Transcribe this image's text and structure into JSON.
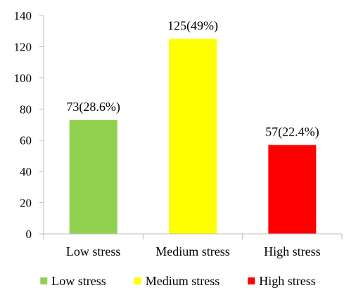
{
  "chart_data": {
    "type": "bar",
    "categories": [
      "Low stress",
      "Medium stress",
      "High stress"
    ],
    "values": [
      73,
      125,
      57
    ],
    "data_labels": [
      "73(28.6%)",
      "125(49%)",
      "57(22.4%)"
    ],
    "colors": [
      "#92d050",
      "#ffff00",
      "#ff0000"
    ],
    "ylim": [
      0,
      140
    ],
    "yticks": [
      0,
      20,
      40,
      60,
      80,
      100,
      120,
      140
    ],
    "grid": false,
    "legend": {
      "position": "bottom",
      "entries": [
        "Low stress",
        "Medium stress",
        "High stress"
      ]
    }
  }
}
